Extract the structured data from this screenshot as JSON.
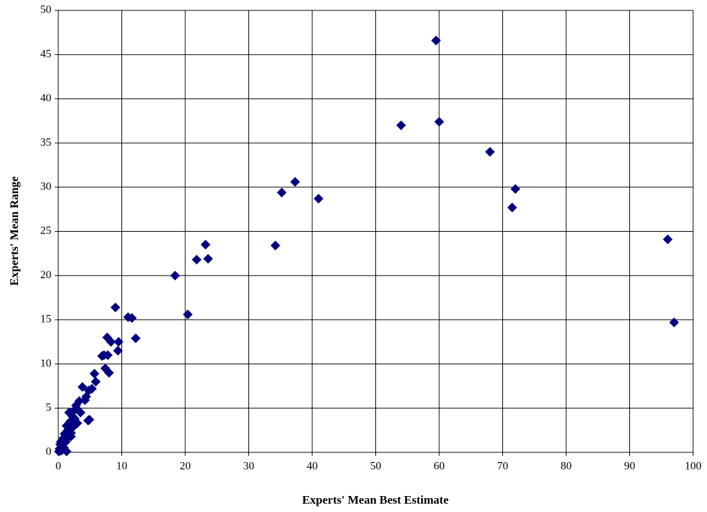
{
  "chart_data": {
    "type": "scatter",
    "x_label": "Experts' Mean Best Estimate",
    "y_label": "Experts' Mean Range",
    "color": "#000080",
    "grid": true,
    "xlim": [
      0,
      100
    ],
    "xticks": [
      0,
      10,
      20,
      30,
      40,
      50,
      60,
      70,
      80,
      90,
      100
    ],
    "ylim": [
      0,
      50
    ],
    "yticks": [
      0,
      5,
      10,
      15,
      20,
      25,
      30,
      35,
      40,
      45,
      50
    ],
    "x": [
      59.5,
      54,
      60,
      68,
      72,
      71.5,
      96,
      97,
      37.3,
      35.2,
      41,
      34.2,
      23.2,
      21.8,
      23.6,
      18.4,
      20.4,
      9,
      11,
      11.6,
      12.2,
      7.7,
      8.3,
      9.5,
      9.4,
      7.2,
      6.9,
      7.8,
      7.4,
      8,
      5.7,
      5.9,
      5.3,
      4.8,
      3.8,
      4.4,
      4.9,
      4.7,
      3.3,
      2.8,
      3.1,
      2.3,
      1.7,
      2.2,
      2.6,
      1.9,
      3,
      1.3,
      2.5,
      1.5,
      2,
      1,
      0.8,
      1.6,
      0.4,
      1.2,
      0.5,
      0.2,
      0.1,
      0.5,
      1.3,
      0.9,
      0.3,
      2,
      2.2,
      3.5,
      4.2
    ],
    "values": [
      46.6,
      37,
      37.4,
      34,
      29.8,
      27.7,
      24.1,
      14.7,
      30.6,
      29.4,
      28.7,
      23.4,
      23.5,
      21.8,
      21.9,
      20,
      15.6,
      16.4,
      15.3,
      15.2,
      12.9,
      13,
      12.5,
      12.5,
      11.5,
      11,
      10.9,
      11,
      9.5,
      9,
      8.9,
      8,
      7.2,
      7,
      7.4,
      6.3,
      3.7,
      3.6,
      5.8,
      5.3,
      4.8,
      4.6,
      4.5,
      4.1,
      3.8,
      3.5,
      3.3,
      3,
      3,
      2.5,
      2.2,
      2.1,
      1.6,
      1.8,
      1.2,
      1.2,
      0.8,
      0.4,
      0.1,
      0.2,
      0.1,
      0.5,
      0.9,
      1.8,
      2.8,
      4.5,
      5.9
    ]
  }
}
